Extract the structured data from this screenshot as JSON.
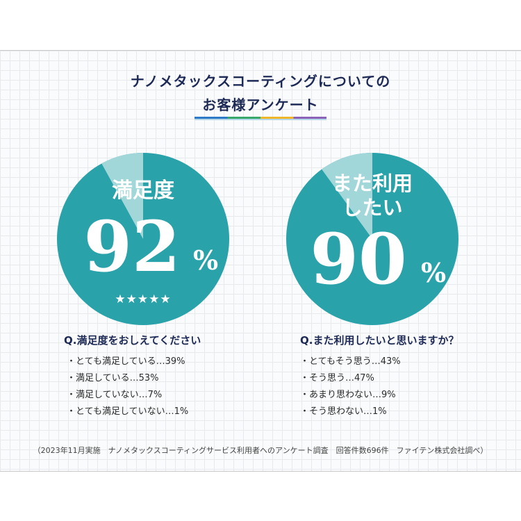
{
  "title_line1": "ナノメタックスコーティングについての",
  "title_line2": "お客様アンケート",
  "colors": {
    "circle": "#29a2aa",
    "wedge": "#a2d7da",
    "text": "#ffffff",
    "heading": "#1d2a55"
  },
  "chart_data": [
    {
      "type": "pie",
      "label": "満足度",
      "value": 92,
      "value_text": "92",
      "unit": "%",
      "stars": "★★★★★",
      "question": "Q.満足度をおしえてください",
      "answers": [
        {
          "text": "とても満足している…39%",
          "label": "とても満足している",
          "value": 39
        },
        {
          "text": "満足している…53%",
          "label": "満足している",
          "value": 53
        },
        {
          "text": "満足していない…7%",
          "label": "満足していない",
          "value": 7
        },
        {
          "text": "とても満足していない…1%",
          "label": "とても満足していない",
          "value": 1
        }
      ]
    },
    {
      "type": "pie",
      "label_line1": "また利用",
      "label_line2": "したい",
      "value": 90,
      "value_text": "90",
      "unit": "%",
      "question": "Q.また利用したいと思いますか？",
      "answers": [
        {
          "text": "とてもそう思う…43%",
          "label": "とてもそう思う",
          "value": 43
        },
        {
          "text": "そう思う…47%",
          "label": "そう思う",
          "value": 47
        },
        {
          "text": "あまり思わない…9%",
          "label": "あまり思わない",
          "value": 9
        },
        {
          "text": "そう思わない…1%",
          "label": "そう思わない",
          "value": 1
        }
      ]
    }
  ],
  "footnote": "（2023年11月実施　ナノメタックスコーティングサービス利用者へのアンケート調査　回答件数696件　ファイテン株式会社調べ）"
}
